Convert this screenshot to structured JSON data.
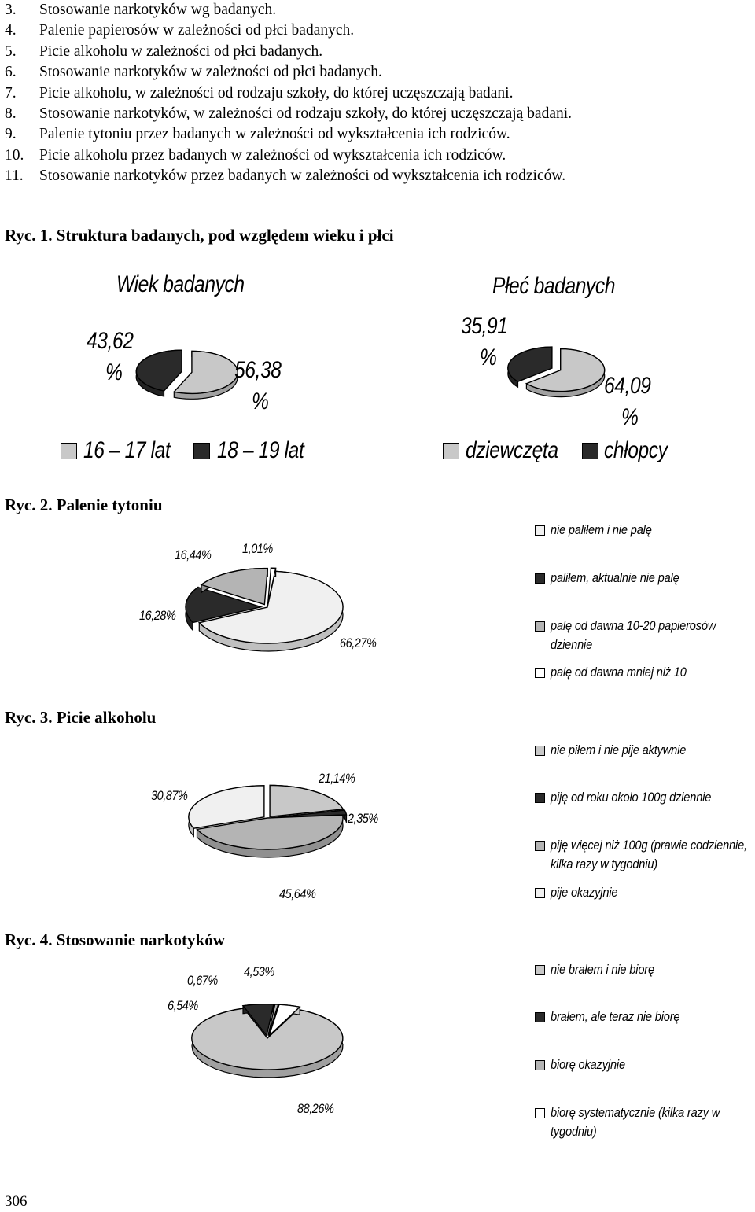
{
  "list": [
    {
      "num": "3.",
      "text": "Stosowanie narkotyków wg badanych."
    },
    {
      "num": "4.",
      "text": "Palenie papierosów w zależności od płci badanych."
    },
    {
      "num": "5.",
      "text": "Picie alkoholu w zależności od płci badanych."
    },
    {
      "num": "6.",
      "text": "Stosowanie narkotyków w zależności od płci badanych."
    },
    {
      "num": "7.",
      "text": "Picie alkoholu, w zależności od rodzaju szkoły, do której uczęszczają badani."
    },
    {
      "num": "8.",
      "text": "Stosowanie narkotyków, w zależności od rodzaju szkoły, do której uczęszczają badani."
    },
    {
      "num": "9.",
      "text": "Palenie tytoniu przez badanych w zależności od wykształcenia ich rodziców."
    },
    {
      "num": "10.",
      "text": "Picie alkoholu przez badanych w zależności od wykształcenia ich rodziców."
    },
    {
      "num": "11.",
      "text": "Stosowanie narkotyków przez badanych w zależności od wykształcenia ich rodziców."
    }
  ],
  "captions": {
    "ryc1": "Ryc. 1. Struktura badanych, pod względem wieku i płci",
    "ryc2": "Ryc. 2. Palenie tytoniu",
    "ryc3": "Ryc. 3. Picie alkoholu",
    "ryc4": "Ryc. 4. Stosowanie narkotyków"
  },
  "page_number": "306",
  "colors": {
    "light_gray": "#c8c8c8",
    "dark": "#2a2a2a",
    "mid_gray": "#b4b4b4",
    "near_white": "#f0f0f0",
    "outline": "#000000"
  },
  "chart_data": [
    {
      "type": "pie",
      "title": "Wiek badanych",
      "labels_line1": [
        "56,38",
        "43,62"
      ],
      "labels_line2": [
        "%",
        "%"
      ],
      "values": [
        56.38,
        43.62
      ],
      "legend": [
        "16 – 17 lat",
        "18 – 19 lat"
      ],
      "colors": [
        "#c8c8c8",
        "#2a2a2a"
      ],
      "legend_placement": "bottom"
    },
    {
      "type": "pie",
      "title": "Płeć badanych",
      "labels_line1": [
        "64,09",
        "35,91"
      ],
      "labels_line2": [
        "%",
        "%"
      ],
      "values": [
        64.09,
        35.91
      ],
      "legend": [
        "dziewczęta",
        "chłopcy"
      ],
      "colors": [
        "#c8c8c8",
        "#2a2a2a"
      ],
      "legend_placement": "bottom"
    },
    {
      "type": "pie",
      "title": "",
      "labels": [
        "66,27%",
        "16,28%",
        "16,44%",
        "1,01%"
      ],
      "values": [
        66.27,
        16.28,
        16.44,
        1.01
      ],
      "legend": [
        "nie paliłem i nie palę",
        "paliłem, aktualnie nie palę",
        "palę od dawna 10-20 papierosów dziennie",
        "palę od dawna mniej niż 10"
      ],
      "colors": [
        "#f0f0f0",
        "#2a2a2a",
        "#b4b4b4",
        "#ffffff"
      ],
      "legend_placement": "right"
    },
    {
      "type": "pie",
      "title": "",
      "labels": [
        "21,14%",
        "2,35%",
        "45,64%",
        "30,87%"
      ],
      "values": [
        21.14,
        2.35,
        45.64,
        30.87
      ],
      "legend": [
        "nie piłem i nie pije aktywnie",
        "piję od roku około 100g dziennie",
        "piję  więcej niż 100g (prawie codziennie, kilka razy w tygodniu)",
        "pije okazyjnie"
      ],
      "colors": [
        "#c8c8c8",
        "#2a2a2a",
        "#b4b4b4",
        "#f0f0f0"
      ],
      "legend_placement": "right"
    },
    {
      "type": "pie",
      "title": "",
      "labels": [
        "88,26%",
        "6,54%",
        "0,67%",
        "4,53%"
      ],
      "values": [
        88.26,
        6.54,
        0.67,
        4.53
      ],
      "legend": [
        "nie brałem i nie biorę",
        "brałem, ale teraz nie biorę",
        "biorę okazyjnie",
        "biorę systematycznie (kilka razy w tygodniu)"
      ],
      "colors": [
        "#c8c8c8",
        "#2a2a2a",
        "#b4b4b4",
        "#ffffff"
      ],
      "legend_placement": "right"
    }
  ]
}
